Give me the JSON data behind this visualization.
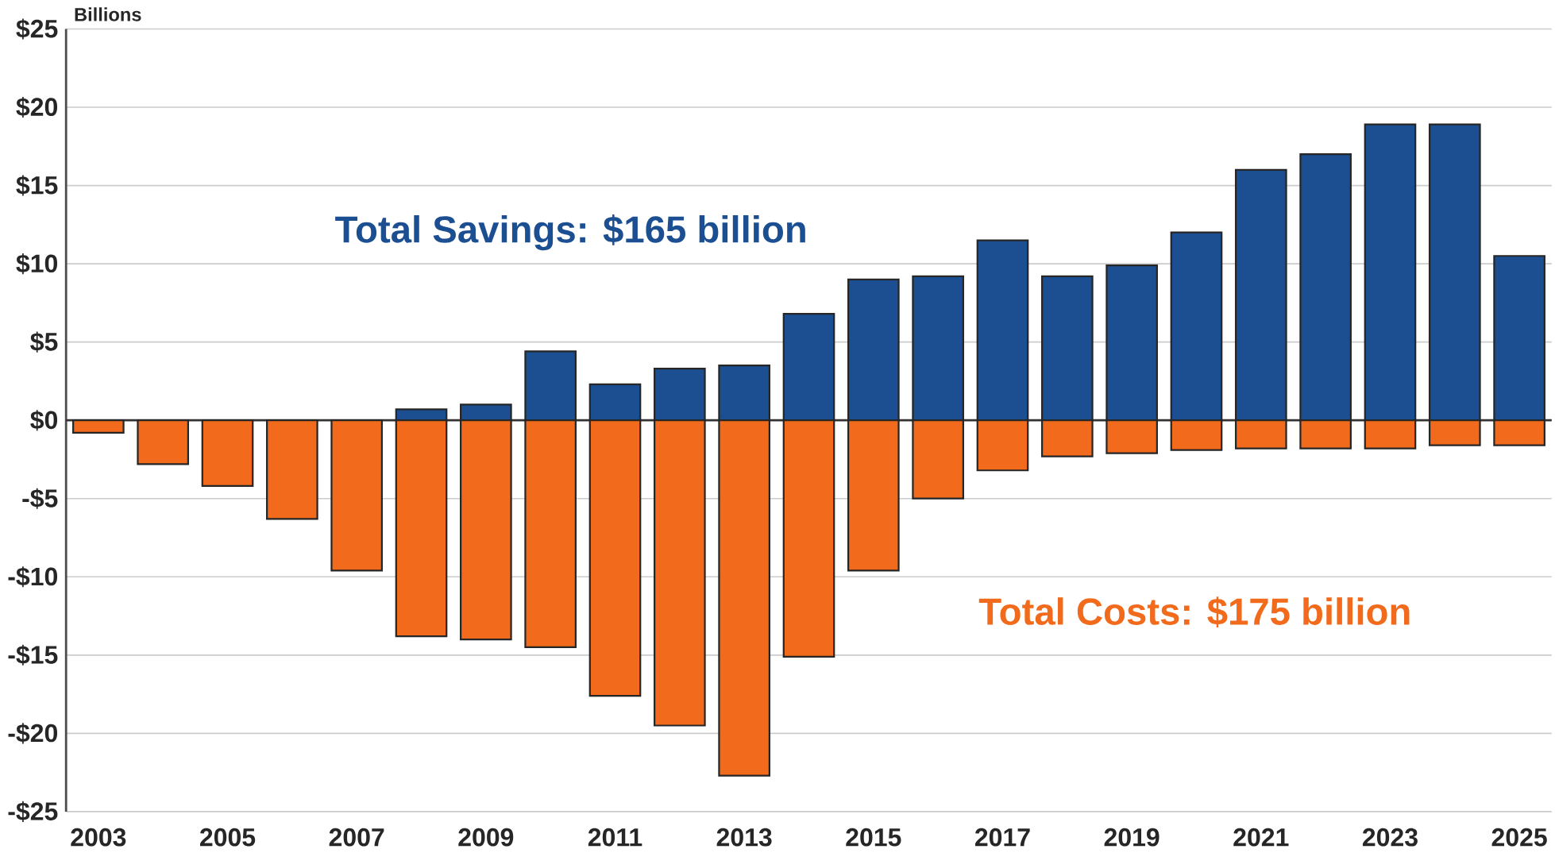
{
  "chart_data": {
    "type": "bar",
    "ylabel": "Billions",
    "stacked": true,
    "grid": "y",
    "categories": [
      "2003",
      null,
      "2005",
      null,
      "2007",
      null,
      "2009",
      null,
      "2011",
      null,
      "2013",
      null,
      "2015",
      null,
      "2017",
      null,
      "2019",
      null,
      "2021",
      null,
      "2023",
      null,
      "2025"
    ],
    "series": [
      {
        "color": "#1c4f91",
        "values": [
          null,
          null,
          null,
          null,
          null,
          0.7,
          1.0,
          4.4,
          2.3,
          3.3,
          3.5,
          6.8,
          9.0,
          9.2,
          11.5,
          9.2,
          9.9,
          12.0,
          16.0,
          17.0,
          18.9,
          18.9,
          10.5
        ]
      },
      {
        "color": "#f26b1d",
        "values": [
          -0.8,
          -2.8,
          -4.2,
          -6.3,
          -9.6,
          -13.8,
          -14.0,
          -14.5,
          -17.6,
          -19.5,
          -22.7,
          -15.1,
          -9.6,
          -5.0,
          -3.2,
          -2.3,
          -2.1,
          -1.9,
          -1.8,
          -1.8,
          -1.8,
          -1.6,
          -1.6
        ]
      }
    ],
    "ylim": [
      -25,
      25
    ],
    "yticks": [
      {
        "value": -25,
        "label": "-$25"
      },
      {
        "value": -20,
        "label": "-$20"
      },
      {
        "value": -15,
        "label": "-$15"
      },
      {
        "value": -10,
        "label": "-$10"
      },
      {
        "value": -5,
        "label": "-$5"
      },
      {
        "value": 0,
        "label": "$0"
      },
      {
        "value": 5,
        "label": "$5"
      },
      {
        "value": 10,
        "label": "$10"
      },
      {
        "value": 15,
        "label": "$15"
      },
      {
        "value": 20,
        "label": "$20"
      },
      {
        "value": 25,
        "label": "$25"
      }
    ],
    "annotations": [
      "Total Savings: $165 billion",
      "Total Costs: $175 billion"
    ]
  }
}
